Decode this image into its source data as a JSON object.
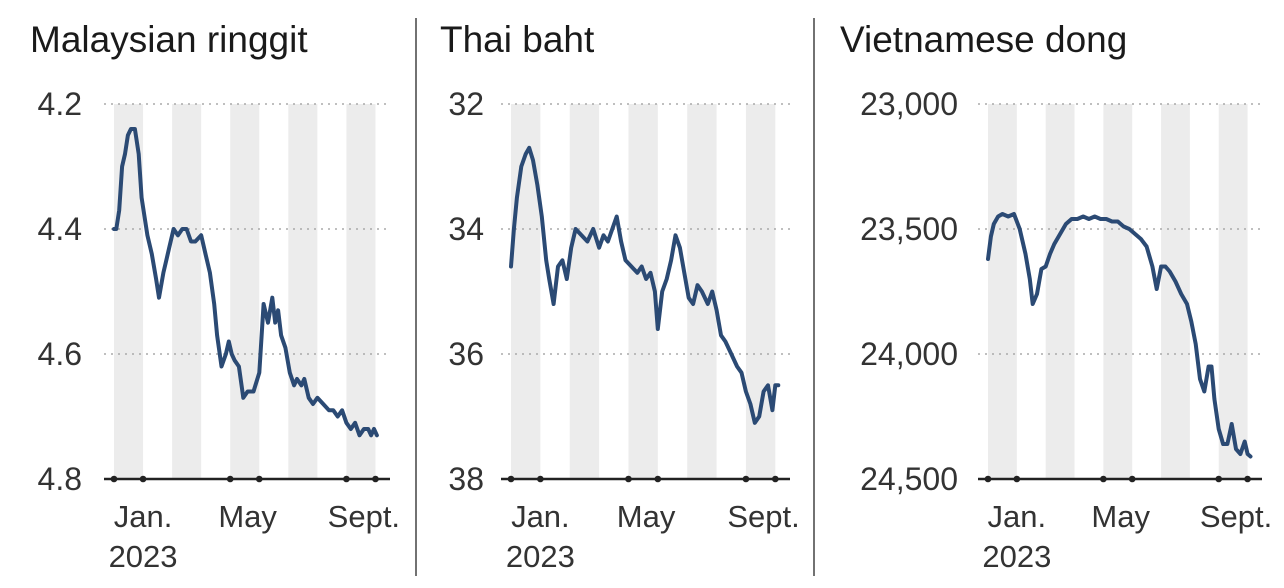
{
  "chart_data": [
    {
      "type": "line",
      "title": "Malaysian ringgit",
      "y_ticks": [
        "4.2",
        "4.4",
        "4.6",
        "4.8"
      ],
      "y_tick_values": [
        4.2,
        4.4,
        4.6,
        4.8
      ],
      "ylim": [
        4.2,
        4.8
      ],
      "y_inverted": true,
      "x_ticks": [
        "Jan.",
        "May",
        "Sept."
      ],
      "x_year_label": "2023",
      "xlim": [
        0,
        9.5
      ],
      "grid": true,
      "series": [
        {
          "x": [
            0,
            0.08,
            0.18,
            0.28,
            0.38,
            0.48,
            0.58,
            0.72,
            0.85,
            0.95,
            1.05,
            1.15,
            1.3,
            1.45,
            1.55,
            1.7,
            1.8,
            1.9,
            2.05,
            2.2,
            2.35,
            2.5,
            2.65,
            2.8,
            3.0,
            3.15,
            3.3,
            3.45,
            3.55,
            3.7,
            3.85,
            3.95,
            4.05,
            4.15,
            4.3,
            4.45,
            4.6,
            4.8,
            5.0,
            5.15,
            5.3,
            5.45,
            5.55,
            5.65,
            5.75,
            5.9,
            6.05,
            6.2,
            6.3,
            6.45,
            6.55,
            6.7,
            6.85,
            7.0,
            7.2,
            7.4,
            7.55,
            7.7,
            7.85,
            8.0,
            8.15,
            8.3,
            8.45,
            8.6,
            8.75,
            8.85,
            8.95,
            9.05
          ],
          "values": [
            4.4,
            4.4,
            4.37,
            4.3,
            4.28,
            4.25,
            4.24,
            4.24,
            4.28,
            4.35,
            4.38,
            4.41,
            4.44,
            4.48,
            4.51,
            4.47,
            4.45,
            4.43,
            4.4,
            4.41,
            4.4,
            4.4,
            4.42,
            4.42,
            4.41,
            4.44,
            4.47,
            4.52,
            4.57,
            4.62,
            4.6,
            4.58,
            4.6,
            4.61,
            4.62,
            4.67,
            4.66,
            4.66,
            4.63,
            4.52,
            4.55,
            4.51,
            4.55,
            4.53,
            4.57,
            4.59,
            4.63,
            4.65,
            4.64,
            4.65,
            4.64,
            4.67,
            4.68,
            4.67,
            4.68,
            4.69,
            4.69,
            4.7,
            4.69,
            4.71,
            4.72,
            4.71,
            4.73,
            4.72,
            4.72,
            4.73,
            4.72,
            4.73
          ]
        }
      ]
    },
    {
      "type": "line",
      "title": "Thai baht",
      "y_ticks": [
        "32",
        "34",
        "36",
        "38"
      ],
      "y_tick_values": [
        32,
        34,
        36,
        38
      ],
      "ylim": [
        32,
        38
      ],
      "y_inverted": true,
      "x_ticks": [
        "Jan.",
        "May",
        "Sept."
      ],
      "x_year_label": "2023",
      "xlim": [
        0,
        9.5
      ],
      "grid": true,
      "series": [
        {
          "x": [
            0,
            0.1,
            0.2,
            0.35,
            0.5,
            0.62,
            0.75,
            0.9,
            1.05,
            1.2,
            1.3,
            1.45,
            1.6,
            1.75,
            1.9,
            2.05,
            2.2,
            2.4,
            2.6,
            2.8,
            3.0,
            3.15,
            3.3,
            3.45,
            3.6,
            3.75,
            3.9,
            4.1,
            4.3,
            4.45,
            4.6,
            4.75,
            4.9,
            5.0,
            5.15,
            5.3,
            5.45,
            5.6,
            5.75,
            5.9,
            6.05,
            6.2,
            6.35,
            6.5,
            6.7,
            6.85,
            7.0,
            7.15,
            7.3,
            7.5,
            7.7,
            7.85,
            8.0,
            8.15,
            8.3,
            8.45,
            8.6,
            8.75,
            8.9,
            9.0,
            9.1
          ],
          "values": [
            34.6,
            34.0,
            33.5,
            33.0,
            32.8,
            32.7,
            32.9,
            33.3,
            33.8,
            34.5,
            34.8,
            35.2,
            34.6,
            34.5,
            34.8,
            34.3,
            34.0,
            34.1,
            34.2,
            34.0,
            34.3,
            34.1,
            34.2,
            34.0,
            33.8,
            34.2,
            34.5,
            34.6,
            34.7,
            34.6,
            34.8,
            34.7,
            35.0,
            35.6,
            35.0,
            34.8,
            34.5,
            34.1,
            34.3,
            34.7,
            35.1,
            35.2,
            34.9,
            35.0,
            35.2,
            35.0,
            35.3,
            35.7,
            35.8,
            36.0,
            36.2,
            36.3,
            36.6,
            36.8,
            37.1,
            37.0,
            36.6,
            36.5,
            36.9,
            36.5,
            36.5
          ]
        }
      ]
    },
    {
      "type": "line",
      "title": "Vietnamese dong",
      "y_ticks": [
        "23,000",
        "23,500",
        "24,000",
        "24,500"
      ],
      "y_tick_values": [
        23000,
        23500,
        24000,
        24500
      ],
      "ylim": [
        23000,
        24500
      ],
      "y_inverted": true,
      "x_ticks": [
        "Jan.",
        "May",
        "Sept."
      ],
      "x_year_label": "2023",
      "xlim": [
        0,
        9.5
      ],
      "grid": true,
      "series": [
        {
          "x": [
            0,
            0.1,
            0.2,
            0.35,
            0.5,
            0.7,
            0.9,
            1.1,
            1.3,
            1.45,
            1.55,
            1.7,
            1.85,
            2.0,
            2.15,
            2.3,
            2.5,
            2.7,
            2.9,
            3.1,
            3.3,
            3.5,
            3.7,
            3.9,
            4.1,
            4.3,
            4.5,
            4.7,
            4.9,
            5.1,
            5.3,
            5.5,
            5.7,
            5.85,
            6.0,
            6.15,
            6.3,
            6.5,
            6.7,
            6.9,
            7.05,
            7.2,
            7.35,
            7.5,
            7.65,
            7.75,
            7.85,
            8.0,
            8.15,
            8.3,
            8.45,
            8.6,
            8.75,
            8.9,
            9.0,
            9.1
          ],
          "values": [
            23620,
            23530,
            23480,
            23450,
            23440,
            23450,
            23440,
            23500,
            23600,
            23700,
            23800,
            23760,
            23660,
            23650,
            23600,
            23560,
            23520,
            23480,
            23460,
            23460,
            23450,
            23460,
            23450,
            23460,
            23460,
            23470,
            23470,
            23490,
            23500,
            23520,
            23540,
            23570,
            23650,
            23740,
            23650,
            23650,
            23670,
            23710,
            23760,
            23800,
            23870,
            23960,
            24100,
            24150,
            24050,
            24050,
            24180,
            24300,
            24360,
            24360,
            24280,
            24380,
            24400,
            24350,
            24400,
            24410
          ]
        }
      ]
    }
  ]
}
